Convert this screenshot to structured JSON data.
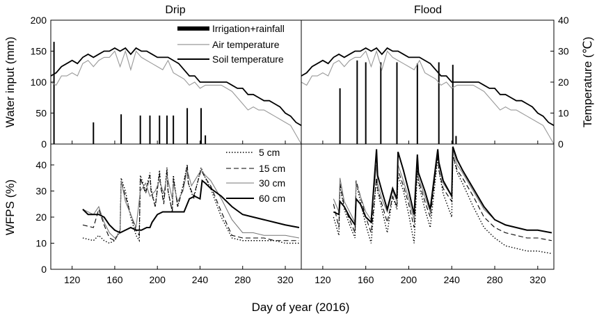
{
  "chart_data": {
    "type": "line",
    "xlabel": "Day of year (2016)",
    "xlim": [
      100,
      335
    ],
    "xticks": [
      120,
      160,
      200,
      240,
      280,
      320
    ],
    "top_panels": {
      "ylabel_left": "Water input (mm)",
      "ylabel_right": "Temperature (℃)",
      "ylim_left": [
        0,
        200
      ],
      "yticks_left": [
        0,
        50,
        100,
        150,
        200
      ],
      "ylim_right": [
        0,
        40
      ],
      "yticks_right": [
        0,
        10,
        20,
        30,
        40
      ],
      "legend": [
        "Irrigation+rainfall",
        "Air temperature",
        "Soil temperature"
      ]
    },
    "bottom_panels": {
      "ylabel": "WFPS (%)",
      "ylim": [
        0,
        48
      ],
      "yticks": [
        0,
        10,
        20,
        30,
        40
      ],
      "legend": [
        "5 cm",
        "15 cm",
        "30 cm",
        "60 cm"
      ]
    },
    "temperature": {
      "x": [
        100,
        105,
        110,
        115,
        120,
        125,
        130,
        135,
        140,
        145,
        150,
        155,
        160,
        165,
        170,
        175,
        180,
        185,
        190,
        195,
        200,
        205,
        210,
        215,
        220,
        225,
        230,
        235,
        240,
        245,
        250,
        255,
        260,
        265,
        270,
        275,
        280,
        285,
        290,
        295,
        300,
        305,
        310,
        315,
        320,
        325,
        330,
        335
      ],
      "soil": [
        22,
        23,
        25,
        26,
        27,
        26,
        28,
        29,
        28,
        29,
        30,
        30,
        31,
        30,
        31,
        29,
        31,
        30,
        30,
        29,
        28,
        28,
        28,
        27,
        26,
        24,
        22,
        22,
        20,
        20,
        20,
        20,
        20,
        20,
        19,
        18,
        18,
        16,
        16,
        15,
        14,
        14,
        13,
        12,
        10,
        9,
        7,
        6
      ],
      "air": [
        20,
        19,
        22,
        22,
        23,
        22,
        26,
        27,
        25,
        27,
        28,
        28,
        30,
        25,
        30,
        24,
        30,
        28,
        27,
        26,
        25,
        24,
        27,
        23,
        22,
        21,
        19,
        20,
        18,
        19,
        19,
        19,
        19,
        18,
        17,
        15,
        13,
        11,
        12,
        11,
        11,
        10,
        9,
        8,
        7,
        6,
        3,
        0
      ]
    },
    "drip": {
      "irrigation": {
        "x": [
          103,
          140,
          166,
          184,
          193,
          202,
          209,
          215,
          228,
          241,
          245
        ],
        "values": [
          165,
          35,
          48,
          46,
          46,
          46,
          46,
          46,
          58,
          58,
          14
        ]
      },
      "wfps": {
        "5 cm": {
          "x": [
            130,
            140,
            145,
            150,
            155,
            160,
            165,
            166,
            170,
            175,
            180,
            183,
            184,
            189,
            193,
            194,
            198,
            202,
            203,
            206,
            209,
            210,
            214,
            215,
            219,
            224,
            228,
            229,
            234,
            241,
            245,
            250,
            260,
            270,
            280,
            290,
            300,
            310,
            320,
            333
          ],
          "values": [
            12,
            11,
            13,
            11,
            10,
            11,
            15,
            35,
            30,
            20,
            13,
            11,
            36,
            30,
            37,
            31,
            24,
            38,
            33,
            26,
            39,
            30,
            22,
            36,
            24,
            32,
            40,
            33,
            27,
            39,
            35,
            31,
            20,
            12,
            11,
            11,
            11,
            11,
            10,
            10
          ]
        },
        "15 cm": {
          "x": [
            130,
            140,
            145,
            150,
            155,
            160,
            165,
            166,
            170,
            175,
            180,
            183,
            184,
            189,
            193,
            194,
            198,
            202,
            203,
            206,
            209,
            210,
            214,
            215,
            219,
            224,
            228,
            229,
            234,
            241,
            245,
            250,
            260,
            270,
            280,
            290,
            300,
            310,
            320,
            333
          ],
          "values": [
            17,
            16,
            23,
            17,
            12,
            11,
            15,
            34,
            28,
            21,
            15,
            13,
            35,
            29,
            36,
            30,
            24,
            37,
            32,
            25,
            38,
            30,
            22,
            35,
            24,
            31,
            40,
            33,
            28,
            38,
            35,
            32,
            22,
            13,
            12,
            12,
            12,
            11,
            11,
            11
          ]
        },
        "30 cm": {
          "x": [
            130,
            140,
            145,
            150,
            155,
            160,
            165,
            166,
            170,
            175,
            180,
            184,
            189,
            193,
            198,
            202,
            206,
            209,
            214,
            215,
            219,
            224,
            228,
            232,
            241,
            245,
            250,
            260,
            270,
            280,
            290,
            300,
            310,
            320,
            333
          ],
          "values": [
            23,
            21,
            24,
            18,
            14,
            12,
            14,
            34,
            26,
            21,
            16,
            30,
            33,
            28,
            30,
            34,
            29,
            36,
            27,
            33,
            26,
            30,
            38,
            32,
            38,
            36,
            34,
            27,
            19,
            14,
            14,
            13,
            13,
            13,
            12
          ]
        },
        "60 cm": {
          "x": [
            130,
            135,
            140,
            145,
            150,
            155,
            160,
            165,
            170,
            175,
            180,
            185,
            190,
            193,
            195,
            200,
            205,
            210,
            215,
            220,
            225,
            230,
            235,
            240,
            242,
            245,
            250,
            260,
            270,
            280,
            290,
            300,
            310,
            320,
            333
          ],
          "values": [
            23,
            21,
            21,
            21,
            20,
            17,
            15,
            14,
            15,
            16,
            15,
            15,
            16,
            16,
            18,
            21,
            22,
            22,
            22,
            22,
            22,
            27,
            28,
            27,
            34,
            33,
            31,
            28,
            24,
            21,
            20,
            19,
            18,
            17,
            16
          ]
        }
      }
    },
    "flood": {
      "irrigation": {
        "x": [
          136,
          152,
          160,
          174,
          189,
          208,
          228,
          241,
          244
        ],
        "values": [
          90,
          135,
          132,
          132,
          132,
          130,
          132,
          128,
          13
        ]
      },
      "wfps": {
        "5 cm": {
          "x": [
            130,
            135,
            136,
            140,
            145,
            150,
            151,
            155,
            160,
            165,
            170,
            171,
            175,
            180,
            185,
            189,
            190,
            195,
            200,
            205,
            208,
            209,
            215,
            220,
            227,
            228,
            232,
            240,
            241,
            245,
            250,
            260,
            270,
            280,
            290,
            300,
            310,
            320,
            333
          ],
          "values": [
            20,
            13,
            32,
            23,
            17,
            12,
            33,
            26,
            17,
            10,
            35,
            30,
            23,
            14,
            28,
            23,
            36,
            30,
            21,
            10,
            38,
            33,
            23,
            16,
            43,
            38,
            29,
            20,
            44,
            37,
            33,
            24,
            16,
            12,
            9,
            8,
            7,
            7,
            6
          ]
        },
        "15 cm": {
          "x": [
            130,
            135,
            136,
            140,
            145,
            150,
            151,
            155,
            160,
            165,
            170,
            171,
            175,
            180,
            185,
            189,
            190,
            195,
            200,
            205,
            208,
            209,
            215,
            220,
            227,
            228,
            232,
            240,
            241,
            245,
            250,
            260,
            270,
            280,
            290,
            300,
            310,
            320,
            333
          ],
          "values": [
            25,
            16,
            33,
            24,
            19,
            14,
            34,
            28,
            20,
            14,
            35,
            31,
            25,
            18,
            28,
            24,
            38,
            32,
            25,
            16,
            40,
            34,
            26,
            20,
            44,
            38,
            31,
            26,
            44,
            38,
            35,
            28,
            20,
            16,
            14,
            13,
            12,
            12,
            11
          ]
        },
        "30 cm": {
          "x": [
            130,
            135,
            136,
            140,
            145,
            150,
            151,
            155,
            160,
            165,
            170,
            171,
            175,
            180,
            185,
            189,
            190,
            195,
            200,
            205,
            208,
            209,
            215,
            220,
            227,
            228,
            232,
            240,
            241,
            245,
            250,
            260,
            270,
            280,
            290,
            300,
            310,
            320,
            333
          ],
          "values": [
            27,
            22,
            35,
            26,
            22,
            18,
            33,
            28,
            22,
            19,
            40,
            33,
            27,
            22,
            30,
            26,
            40,
            34,
            27,
            19,
            42,
            35,
            28,
            22,
            45,
            40,
            33,
            28,
            46,
            40,
            37,
            30,
            23,
            19,
            17,
            16,
            15,
            15,
            14
          ]
        },
        "60 cm": {
          "x": [
            130,
            135,
            136,
            140,
            145,
            150,
            151,
            155,
            160,
            165,
            170,
            171,
            175,
            180,
            185,
            189,
            190,
            195,
            200,
            205,
            208,
            209,
            215,
            220,
            227,
            228,
            232,
            240,
            241,
            245,
            250,
            260,
            270,
            280,
            290,
            300,
            310,
            320,
            333
          ],
          "values": [
            22,
            21,
            26,
            24,
            20,
            17,
            27,
            25,
            20,
            18,
            46,
            36,
            30,
            23,
            31,
            27,
            45,
            38,
            30,
            21,
            44,
            37,
            30,
            23,
            46,
            41,
            34,
            28,
            47,
            42,
            38,
            31,
            24,
            19,
            17,
            16,
            15,
            15,
            14
          ]
        }
      }
    },
    "panel_titles": [
      "Drip",
      "Flood"
    ],
    "series_colors": {
      "air": "#999999",
      "soil": "#000000",
      "bars": "#000000"
    }
  }
}
